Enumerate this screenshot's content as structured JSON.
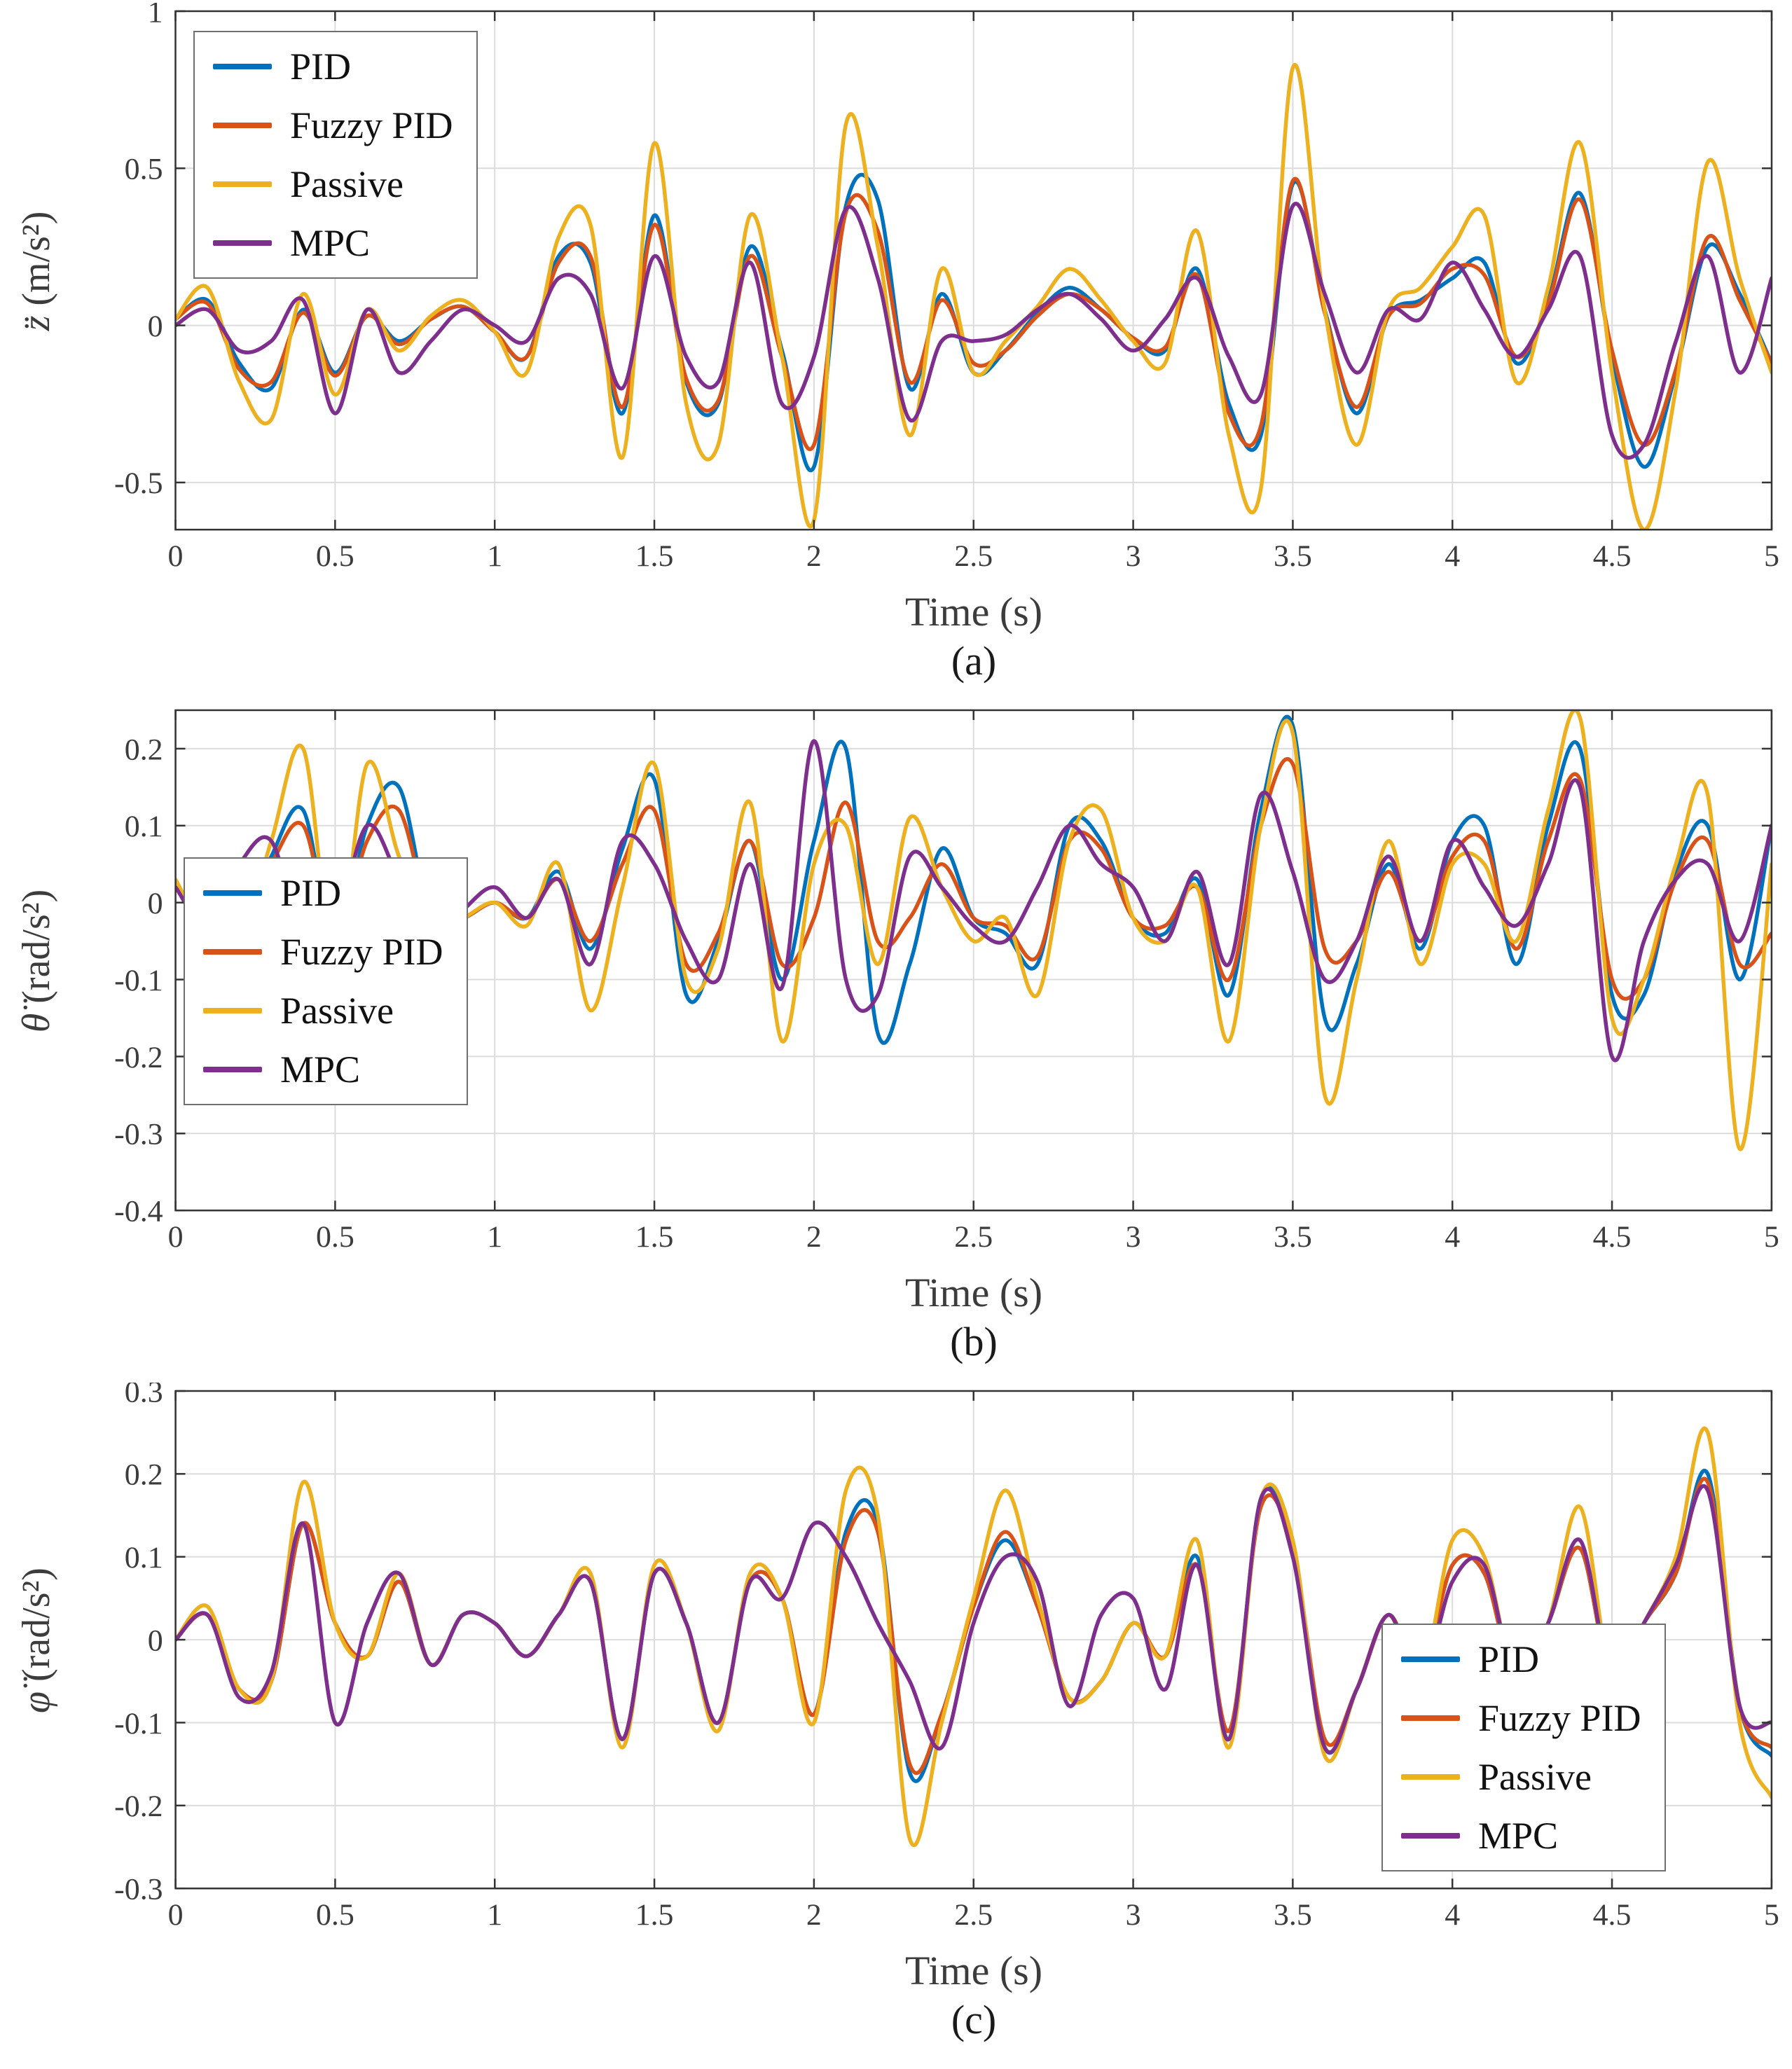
{
  "figure": {
    "background": "#ffffff"
  },
  "colors": {
    "grid": "#DCDCDC",
    "axis_box": "#333333",
    "tick_label": "#3c3c3c",
    "pid": "#0072BD",
    "fuzzy_pid": "#D95319",
    "passive": "#EDB120",
    "mpc": "#7E2F8E"
  },
  "chart_data": [
    {
      "type": "line",
      "caption": "(a)",
      "xlabel": "Time (s)",
      "ylabel_var": "z̈",
      "ylabel_unit": " (m/s²)",
      "xlim": [
        0,
        5
      ],
      "ylim": [
        -0.65,
        1.0
      ],
      "xticks": [
        0,
        0.5,
        1,
        1.5,
        2,
        2.5,
        3,
        3.5,
        4,
        4.5,
        5
      ],
      "xtick_labels": [
        "0",
        "0.5",
        "1",
        "1.5",
        "2",
        "2.5",
        "3",
        "3.5",
        "4",
        "4.5",
        "5"
      ],
      "yticks": [
        -0.5,
        0,
        0.5,
        1
      ],
      "ytick_labels": [
        "-0.5",
        "0",
        "0.5",
        "1"
      ],
      "grid": true,
      "legend_position": "top-left",
      "x_start": 0,
      "x_step": 0.1,
      "series": [
        {
          "name": "PID",
          "color": "#0072BD",
          "values": [
            0.02,
            0.08,
            -0.12,
            -0.2,
            0.05,
            -0.15,
            0.03,
            -0.05,
            0.02,
            0.06,
            -0.02,
            -0.1,
            0.22,
            0.2,
            -0.28,
            0.35,
            -0.18,
            -0.25,
            0.25,
            -0.08,
            -0.45,
            0.38,
            0.4,
            -0.2,
            0.1,
            -0.15,
            -0.08,
            0.04,
            0.12,
            0.05,
            -0.04,
            -0.08,
            0.18,
            -0.25,
            -0.35,
            0.45,
            0.05,
            -0.28,
            0.03,
            0.08,
            0.15,
            0.2,
            -0.12,
            0.08,
            0.42,
            -0.1,
            -0.45,
            -0.15,
            0.25,
            0.1,
            -0.12
          ]
        },
        {
          "name": "Fuzzy PID",
          "color": "#D95319",
          "values": [
            0.02,
            0.07,
            -0.14,
            -0.18,
            0.04,
            -0.16,
            0.03,
            -0.06,
            0.02,
            0.06,
            -0.02,
            -0.1,
            0.2,
            0.22,
            -0.26,
            0.32,
            -0.17,
            -0.24,
            0.22,
            -0.1,
            -0.38,
            0.36,
            0.3,
            -0.18,
            0.08,
            -0.12,
            -0.08,
            0.03,
            0.1,
            0.05,
            -0.04,
            -0.07,
            0.16,
            -0.28,
            -0.32,
            0.46,
            0.04,
            -0.26,
            0.03,
            0.07,
            0.18,
            0.16,
            -0.1,
            0.07,
            0.4,
            -0.08,
            -0.38,
            -0.14,
            0.28,
            0.08,
            -0.12
          ]
        },
        {
          "name": "Passive",
          "color": "#EDB120",
          "values": [
            0.02,
            0.12,
            -0.18,
            -0.3,
            0.1,
            -0.22,
            0.05,
            -0.08,
            0.03,
            0.08,
            -0.02,
            -0.15,
            0.28,
            0.32,
            -0.42,
            0.58,
            -0.25,
            -0.38,
            0.35,
            -0.1,
            -0.62,
            0.64,
            0.25,
            -0.35,
            0.18,
            -0.15,
            -0.05,
            0.06,
            0.18,
            0.08,
            -0.05,
            -0.12,
            0.3,
            -0.35,
            -0.52,
            0.82,
            0.05,
            -0.38,
            0.05,
            0.12,
            0.25,
            0.35,
            -0.18,
            0.12,
            0.58,
            -0.15,
            -0.65,
            -0.2,
            0.52,
            0.15,
            -0.15
          ]
        },
        {
          "name": "MPC",
          "color": "#7E2F8E",
          "values": [
            0.0,
            0.05,
            -0.08,
            -0.05,
            0.08,
            -0.28,
            0.05,
            -0.15,
            -0.05,
            0.05,
            0.0,
            -0.05,
            0.15,
            0.1,
            -0.2,
            0.22,
            -0.1,
            -0.18,
            0.2,
            -0.25,
            -0.1,
            0.37,
            0.15,
            -0.3,
            -0.05,
            -0.05,
            -0.03,
            0.05,
            0.1,
            0.02,
            -0.08,
            0.02,
            0.15,
            -0.1,
            -0.22,
            0.38,
            0.1,
            -0.15,
            0.05,
            0.02,
            0.2,
            0.05,
            -0.1,
            0.05,
            0.22,
            -0.35,
            -0.38,
            -0.05,
            0.22,
            -0.15,
            0.15
          ]
        }
      ]
    },
    {
      "type": "line",
      "caption": "(b)",
      "xlabel": "Time (s)",
      "ylabel_var": "θ̈",
      "ylabel_unit": " (rad/s²)",
      "xlim": [
        0,
        5
      ],
      "ylim": [
        -0.4,
        0.25
      ],
      "xticks": [
        0,
        0.5,
        1,
        1.5,
        2,
        2.5,
        3,
        3.5,
        4,
        4.5,
        5
      ],
      "xtick_labels": [
        "0",
        "0.5",
        "1",
        "1.5",
        "2",
        "2.5",
        "3",
        "3.5",
        "4",
        "4.5",
        "5"
      ],
      "yticks": [
        -0.4,
        -0.3,
        -0.2,
        -0.1,
        0,
        0.1,
        0.2
      ],
      "ytick_labels": [
        "-0.4",
        "-0.3",
        "-0.2",
        "-0.1",
        "0",
        "0.1",
        "0.2"
      ],
      "grid": true,
      "legend_position": "middle-left",
      "x_start": 0,
      "x_step": 0.1,
      "series": [
        {
          "name": "PID",
          "color": "#0072BD",
          "values": [
            0.02,
            -0.03,
            -0.04,
            0.06,
            0.12,
            -0.06,
            0.1,
            0.15,
            -0.02,
            -0.02,
            0.0,
            -0.02,
            0.04,
            -0.06,
            0.07,
            0.16,
            -0.12,
            -0.05,
            0.08,
            -0.1,
            0.08,
            0.2,
            -0.17,
            -0.08,
            0.07,
            -0.02,
            -0.04,
            -0.08,
            0.1,
            0.08,
            -0.02,
            -0.04,
            0.03,
            -0.12,
            0.12,
            0.23,
            -0.15,
            -0.08,
            0.05,
            -0.06,
            0.08,
            0.1,
            -0.08,
            0.1,
            0.2,
            -0.12,
            -0.12,
            0.04,
            0.1,
            -0.1,
            0.1
          ]
        },
        {
          "name": "Fuzzy PID",
          "color": "#D95319",
          "values": [
            0.02,
            -0.03,
            -0.04,
            0.05,
            0.1,
            -0.05,
            0.08,
            0.12,
            -0.02,
            -0.02,
            0.0,
            -0.02,
            0.03,
            -0.05,
            0.05,
            0.12,
            -0.08,
            -0.04,
            0.08,
            -0.08,
            -0.02,
            0.13,
            -0.05,
            -0.02,
            0.05,
            -0.02,
            -0.03,
            -0.07,
            0.08,
            0.07,
            -0.02,
            -0.03,
            0.02,
            -0.1,
            0.1,
            0.18,
            -0.06,
            -0.05,
            0.04,
            -0.05,
            0.06,
            0.08,
            -0.06,
            0.08,
            0.16,
            -0.1,
            -0.1,
            0.03,
            0.08,
            -0.08,
            -0.04
          ]
        },
        {
          "name": "Passive",
          "color": "#EDB120",
          "values": [
            0.03,
            -0.04,
            -0.05,
            0.08,
            0.2,
            -0.08,
            0.18,
            0.06,
            -0.03,
            -0.02,
            0.0,
            -0.03,
            0.05,
            -0.14,
            0.02,
            0.18,
            -0.1,
            -0.06,
            0.13,
            -0.18,
            0.05,
            0.1,
            -0.08,
            0.11,
            0.02,
            -0.05,
            -0.02,
            -0.12,
            0.08,
            0.12,
            -0.02,
            -0.05,
            0.02,
            -0.18,
            0.1,
            0.22,
            -0.25,
            -0.1,
            0.08,
            -0.08,
            0.05,
            0.05,
            -0.05,
            0.12,
            0.24,
            -0.15,
            -0.1,
            0.05,
            0.14,
            -0.32,
            0.05
          ]
        },
        {
          "name": "MPC",
          "color": "#7E2F8E",
          "values": [
            0.02,
            -0.03,
            0.05,
            0.08,
            -0.05,
            -0.03,
            0.1,
            0.03,
            -0.05,
            -0.01,
            0.02,
            -0.02,
            0.03,
            -0.08,
            0.08,
            0.05,
            -0.05,
            -0.1,
            0.05,
            -0.11,
            0.21,
            -0.1,
            -0.12,
            0.06,
            0.02,
            -0.03,
            -0.05,
            0.02,
            0.1,
            0.05,
            0.02,
            -0.05,
            0.04,
            -0.08,
            0.14,
            0.04,
            -0.1,
            -0.05,
            0.06,
            -0.05,
            0.08,
            0.02,
            -0.03,
            0.05,
            0.15,
            -0.2,
            -0.05,
            0.03,
            0.05,
            -0.05,
            0.1
          ]
        }
      ]
    },
    {
      "type": "line",
      "caption": "(c)",
      "xlabel": "Time (s)",
      "ylabel_var": "φ̈",
      "ylabel_unit": " (rad/s²)",
      "xlim": [
        0,
        5
      ],
      "ylim": [
        -0.3,
        0.3
      ],
      "xticks": [
        0,
        0.5,
        1,
        1.5,
        2,
        2.5,
        3,
        3.5,
        4,
        4.5,
        5
      ],
      "xtick_labels": [
        "0",
        "0.5",
        "1",
        "1.5",
        "2",
        "2.5",
        "3",
        "3.5",
        "4",
        "4.5",
        "5"
      ],
      "yticks": [
        -0.3,
        -0.2,
        -0.1,
        0,
        0.1,
        0.2,
        0.3
      ],
      "ytick_labels": [
        "-0.3",
        "-0.2",
        "-0.1",
        "0",
        "0.1",
        "0.2",
        "0.3"
      ],
      "grid": true,
      "legend_position": "bottom-right",
      "x_start": 0,
      "x_step": 0.1,
      "series": [
        {
          "name": "PID",
          "color": "#0072BD",
          "values": [
            0.0,
            0.03,
            -0.06,
            -0.05,
            0.14,
            0.02,
            -0.02,
            0.07,
            -0.03,
            0.03,
            0.02,
            -0.02,
            0.03,
            0.07,
            -0.12,
            0.08,
            0.02,
            -0.1,
            0.07,
            0.05,
            -0.09,
            0.13,
            0.14,
            -0.16,
            -0.09,
            0.04,
            0.12,
            0.04,
            -0.07,
            -0.05,
            0.02,
            -0.02,
            0.1,
            -0.12,
            0.17,
            0.11,
            -0.13,
            -0.06,
            0.03,
            -0.04,
            0.09,
            0.08,
            -0.05,
            0.02,
            0.11,
            -0.05,
            0.02,
            0.08,
            0.2,
            -0.08,
            -0.14
          ]
        },
        {
          "name": "Fuzzy PID",
          "color": "#D95319",
          "values": [
            0.0,
            0.03,
            -0.06,
            -0.05,
            0.14,
            0.02,
            -0.02,
            0.07,
            -0.03,
            0.03,
            0.02,
            -0.02,
            0.03,
            0.07,
            -0.12,
            0.08,
            0.02,
            -0.1,
            0.07,
            0.05,
            -0.09,
            0.12,
            0.13,
            -0.15,
            -0.09,
            0.04,
            0.13,
            0.04,
            -0.07,
            -0.05,
            0.02,
            -0.02,
            0.09,
            -0.11,
            0.16,
            0.11,
            -0.12,
            -0.06,
            0.03,
            -0.04,
            0.09,
            0.08,
            -0.05,
            0.02,
            0.11,
            -0.05,
            0.02,
            0.08,
            0.19,
            -0.08,
            -0.13
          ]
        },
        {
          "name": "Passive",
          "color": "#EDB120",
          "values": [
            0.0,
            0.04,
            -0.06,
            -0.05,
            0.19,
            0.02,
            -0.02,
            0.08,
            -0.03,
            0.03,
            0.02,
            -0.02,
            0.03,
            0.08,
            -0.13,
            0.09,
            0.02,
            -0.11,
            0.08,
            0.05,
            -0.1,
            0.18,
            0.15,
            -0.24,
            -0.1,
            0.05,
            0.18,
            0.05,
            -0.07,
            -0.05,
            0.02,
            -0.02,
            0.12,
            -0.13,
            0.17,
            0.12,
            -0.14,
            -0.06,
            0.03,
            -0.05,
            0.12,
            0.1,
            -0.05,
            0.02,
            0.16,
            -0.05,
            0.02,
            0.1,
            0.25,
            -0.1,
            -0.19
          ]
        },
        {
          "name": "MPC",
          "color": "#7E2F8E",
          "values": [
            0.0,
            0.03,
            -0.07,
            -0.04,
            0.14,
            -0.1,
            0.02,
            0.08,
            -0.03,
            0.03,
            0.02,
            -0.02,
            0.03,
            0.07,
            -0.12,
            0.08,
            0.02,
            -0.1,
            0.07,
            0.05,
            0.14,
            0.1,
            0.02,
            -0.05,
            -0.13,
            0.02,
            0.1,
            0.07,
            -0.08,
            0.03,
            0.05,
            -0.06,
            0.09,
            -0.12,
            0.17,
            0.1,
            -0.13,
            -0.06,
            0.03,
            -0.05,
            0.07,
            0.09,
            -0.05,
            0.02,
            0.12,
            -0.05,
            0.02,
            0.09,
            0.18,
            -0.08,
            -0.1
          ]
        }
      ]
    }
  ]
}
